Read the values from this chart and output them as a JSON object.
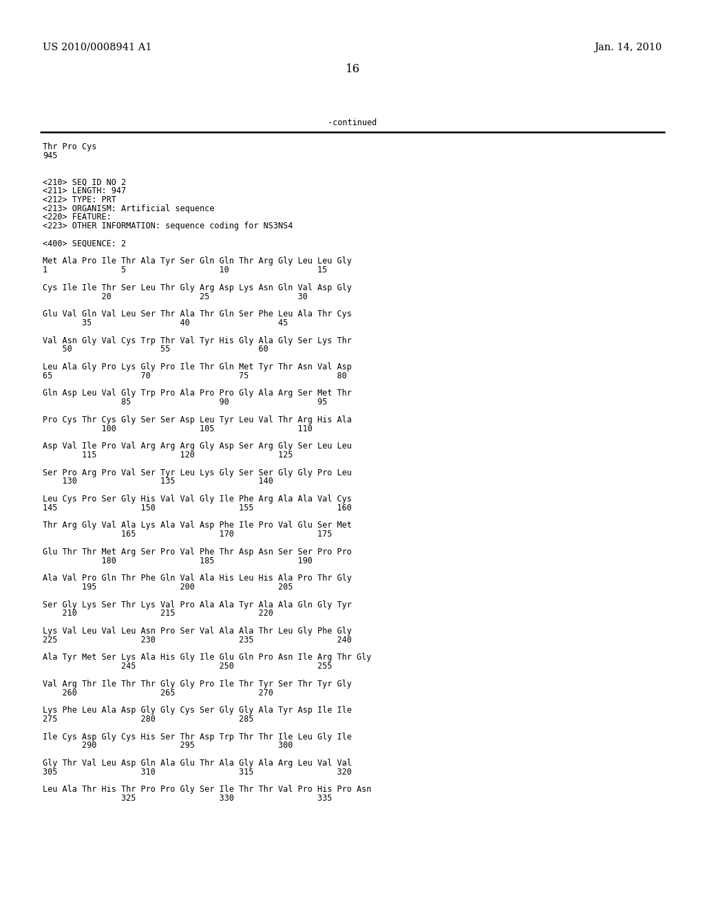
{
  "header_left": "US 2010/0008941 A1",
  "header_right": "Jan. 14, 2010",
  "page_number": "16",
  "continued_text": "-continued",
  "background_color": "#ffffff",
  "text_color": "#000000",
  "font_size": 8.5,
  "header_font_size": 10.5,
  "page_num_font_size": 12,
  "content_lines": [
    "Thr Pro Cys",
    "945",
    "",
    "",
    "<210> SEQ ID NO 2",
    "<211> LENGTH: 947",
    "<212> TYPE: PRT",
    "<213> ORGANISM: Artificial sequence",
    "<220> FEATURE:",
    "<223> OTHER INFORMATION: sequence coding for NS3NS4",
    "",
    "<400> SEQUENCE: 2",
    "",
    "Met Ala Pro Ile Thr Ala Tyr Ser Gln Gln Thr Arg Gly Leu Leu Gly",
    "1               5                   10                  15",
    "",
    "Cys Ile Ile Thr Ser Leu Thr Gly Arg Asp Lys Asn Gln Val Asp Gly",
    "            20                  25                  30",
    "",
    "Glu Val Gln Val Leu Ser Thr Ala Thr Gln Ser Phe Leu Ala Thr Cys",
    "        35                  40                  45",
    "",
    "Val Asn Gly Val Cys Trp Thr Val Tyr His Gly Ala Gly Ser Lys Thr",
    "    50                  55                  60",
    "",
    "Leu Ala Gly Pro Lys Gly Pro Ile Thr Gln Met Tyr Thr Asn Val Asp",
    "65                  70                  75                  80",
    "",
    "Gln Asp Leu Val Gly Trp Pro Ala Pro Pro Gly Ala Arg Ser Met Thr",
    "                85                  90                  95",
    "",
    "Pro Cys Thr Cys Gly Ser Ser Asp Leu Tyr Leu Val Thr Arg His Ala",
    "            100                 105                 110",
    "",
    "Asp Val Ile Pro Val Arg Arg Arg Gly Asp Ser Arg Gly Ser Leu Leu",
    "        115                 120                 125",
    "",
    "Ser Pro Arg Pro Val Ser Tyr Leu Lys Gly Ser Ser Gly Gly Pro Leu",
    "    130                 135                 140",
    "",
    "Leu Cys Pro Ser Gly His Val Val Gly Ile Phe Arg Ala Ala Val Cys",
    "145                 150                 155                 160",
    "",
    "Thr Arg Gly Val Ala Lys Ala Val Asp Phe Ile Pro Val Glu Ser Met",
    "                165                 170                 175",
    "",
    "Glu Thr Thr Met Arg Ser Pro Val Phe Thr Asp Asn Ser Ser Pro Pro",
    "            180                 185                 190",
    "",
    "Ala Val Pro Gln Thr Phe Gln Val Ala His Leu His Ala Pro Thr Gly",
    "        195                 200                 205",
    "",
    "Ser Gly Lys Ser Thr Lys Val Pro Ala Ala Tyr Ala Ala Gln Gly Tyr",
    "    210                 215                 220",
    "",
    "Lys Val Leu Val Leu Asn Pro Ser Val Ala Ala Thr Leu Gly Phe Gly",
    "225                 230                 235                 240",
    "",
    "Ala Tyr Met Ser Lys Ala His Gly Ile Glu Gln Pro Asn Ile Arg Thr Gly",
    "                245                 250                 255",
    "",
    "Val Arg Thr Ile Thr Thr Gly Gly Pro Ile Thr Tyr Ser Thr Tyr Gly",
    "    260                 265                 270",
    "",
    "Lys Phe Leu Ala Asp Gly Gly Cys Ser Gly Gly Ala Tyr Asp Ile Ile",
    "275                 280                 285",
    "",
    "Ile Cys Asp Gly Cys His Ser Thr Asp Trp Thr Thr Ile Leu Gly Ile",
    "        290                 295                 300",
    "",
    "Gly Thr Val Leu Asp Gln Ala Glu Thr Ala Gly Ala Arg Leu Val Val",
    "305                 310                 315                 320",
    "",
    "Leu Ala Thr His Thr Pro Pro Gly Ser Ile Thr Thr Val Pro His Pro Asn",
    "                325                 330                 335"
  ]
}
